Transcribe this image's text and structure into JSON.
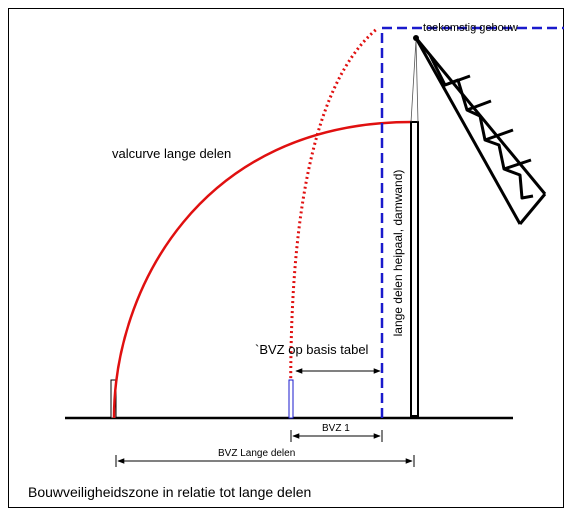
{
  "labels": {
    "valcurve": "valcurve lange delen",
    "future_building": "toekomstig gebouw",
    "bvz_table": "`BVZ op basis tabel",
    "long_parts_vertical": "lange delen heipaal, damwand)",
    "bvz1": "BVZ 1",
    "bvz_lange_delen": "BVZ Lange delen",
    "caption": "Bouwveiligheidszone in relatie tot lange delen"
  },
  "colors": {
    "curve_red": "#e01010",
    "boundary_blue": "#1a1acc",
    "line_black": "#000000",
    "frame": "#000000"
  }
}
